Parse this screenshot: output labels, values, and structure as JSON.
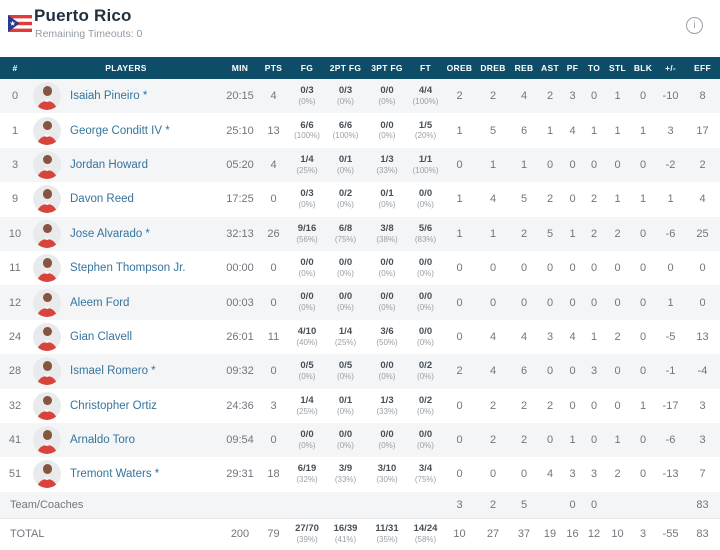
{
  "header": {
    "team_name": "Puerto Rico",
    "subtitle": "Remaining Timeouts: 0",
    "flag": "puerto-rico-flag",
    "info_icon_glyph": "i"
  },
  "colors": {
    "table_header_bg": "#0e4d68",
    "player_name_link": "#36749d",
    "jersey_red": "#d8433c",
    "flag_red": "#e03c3c",
    "flag_blue": "#243e8f",
    "alt_row_bg": "#f4f5f6"
  },
  "table": {
    "columns": [
      "#",
      "PLAYERS",
      "MIN",
      "PTS",
      "FG",
      "2PT FG",
      "3PT FG",
      "FT",
      "OREB",
      "DREB",
      "REB",
      "AST",
      "PF",
      "TO",
      "STL",
      "BLK",
      "+/-",
      "EFF"
    ],
    "column_keys": [
      "num",
      "players",
      "min",
      "pts",
      "fg",
      "2pt",
      "3pt",
      "ft",
      "oreb",
      "dreb",
      "reb",
      "ast",
      "pf",
      "to",
      "stl",
      "blk",
      "pm",
      "eff"
    ],
    "players": [
      {
        "num": "0",
        "name": "Isaiah Pineiro *",
        "min": "20:15",
        "pts": "4",
        "fg": "0/3",
        "fg_pct": "(0%)",
        "fg2": "0/3",
        "fg2_pct": "(0%)",
        "fg3": "0/0",
        "fg3_pct": "(0%)",
        "ft": "4/4",
        "ft_pct": "(100%)",
        "oreb": "2",
        "dreb": "2",
        "reb": "4",
        "ast": "2",
        "pf": "3",
        "to": "0",
        "stl": "1",
        "blk": "0",
        "pm": "-10",
        "eff": "8"
      },
      {
        "num": "1",
        "name": "George Conditt IV *",
        "min": "25:10",
        "pts": "13",
        "fg": "6/6",
        "fg_pct": "(100%)",
        "fg2": "6/6",
        "fg2_pct": "(100%)",
        "fg3": "0/0",
        "fg3_pct": "(0%)",
        "ft": "1/5",
        "ft_pct": "(20%)",
        "oreb": "1",
        "dreb": "5",
        "reb": "6",
        "ast": "1",
        "pf": "4",
        "to": "1",
        "stl": "1",
        "blk": "1",
        "pm": "3",
        "eff": "17"
      },
      {
        "num": "3",
        "name": "Jordan Howard",
        "min": "05:20",
        "pts": "4",
        "fg": "1/4",
        "fg_pct": "(25%)",
        "fg2": "0/1",
        "fg2_pct": "(0%)",
        "fg3": "1/3",
        "fg3_pct": "(33%)",
        "ft": "1/1",
        "ft_pct": "(100%)",
        "oreb": "0",
        "dreb": "1",
        "reb": "1",
        "ast": "0",
        "pf": "0",
        "to": "0",
        "stl": "0",
        "blk": "0",
        "pm": "-2",
        "eff": "2"
      },
      {
        "num": "9",
        "name": "Davon Reed",
        "min": "17:25",
        "pts": "0",
        "fg": "0/3",
        "fg_pct": "(0%)",
        "fg2": "0/2",
        "fg2_pct": "(0%)",
        "fg3": "0/1",
        "fg3_pct": "(0%)",
        "ft": "0/0",
        "ft_pct": "(0%)",
        "oreb": "1",
        "dreb": "4",
        "reb": "5",
        "ast": "2",
        "pf": "0",
        "to": "2",
        "stl": "1",
        "blk": "1",
        "pm": "1",
        "eff": "4"
      },
      {
        "num": "10",
        "name": "Jose Alvarado *",
        "min": "32:13",
        "pts": "26",
        "fg": "9/16",
        "fg_pct": "(56%)",
        "fg2": "6/8",
        "fg2_pct": "(75%)",
        "fg3": "3/8",
        "fg3_pct": "(38%)",
        "ft": "5/6",
        "ft_pct": "(83%)",
        "oreb": "1",
        "dreb": "1",
        "reb": "2",
        "ast": "5",
        "pf": "1",
        "to": "2",
        "stl": "2",
        "blk": "0",
        "pm": "-6",
        "eff": "25"
      },
      {
        "num": "11",
        "name": "Stephen Thompson Jr.",
        "min": "00:00",
        "pts": "0",
        "fg": "0/0",
        "fg_pct": "(0%)",
        "fg2": "0/0",
        "fg2_pct": "(0%)",
        "fg3": "0/0",
        "fg3_pct": "(0%)",
        "ft": "0/0",
        "ft_pct": "(0%)",
        "oreb": "0",
        "dreb": "0",
        "reb": "0",
        "ast": "0",
        "pf": "0",
        "to": "0",
        "stl": "0",
        "blk": "0",
        "pm": "0",
        "eff": "0"
      },
      {
        "num": "12",
        "name": "Aleem Ford",
        "min": "00:03",
        "pts": "0",
        "fg": "0/0",
        "fg_pct": "(0%)",
        "fg2": "0/0",
        "fg2_pct": "(0%)",
        "fg3": "0/0",
        "fg3_pct": "(0%)",
        "ft": "0/0",
        "ft_pct": "(0%)",
        "oreb": "0",
        "dreb": "0",
        "reb": "0",
        "ast": "0",
        "pf": "0",
        "to": "0",
        "stl": "0",
        "blk": "0",
        "pm": "1",
        "eff": "0"
      },
      {
        "num": "24",
        "name": "Gian Clavell",
        "min": "26:01",
        "pts": "11",
        "fg": "4/10",
        "fg_pct": "(40%)",
        "fg2": "1/4",
        "fg2_pct": "(25%)",
        "fg3": "3/6",
        "fg3_pct": "(50%)",
        "ft": "0/0",
        "ft_pct": "(0%)",
        "oreb": "0",
        "dreb": "4",
        "reb": "4",
        "ast": "3",
        "pf": "4",
        "to": "1",
        "stl": "2",
        "blk": "0",
        "pm": "-5",
        "eff": "13"
      },
      {
        "num": "28",
        "name": "Ismael Romero *",
        "min": "09:32",
        "pts": "0",
        "fg": "0/5",
        "fg_pct": "(0%)",
        "fg2": "0/5",
        "fg2_pct": "(0%)",
        "fg3": "0/0",
        "fg3_pct": "(0%)",
        "ft": "0/2",
        "ft_pct": "(0%)",
        "oreb": "2",
        "dreb": "4",
        "reb": "6",
        "ast": "0",
        "pf": "0",
        "to": "3",
        "stl": "0",
        "blk": "0",
        "pm": "-1",
        "eff": "-4"
      },
      {
        "num": "32",
        "name": "Christopher Ortiz",
        "min": "24:36",
        "pts": "3",
        "fg": "1/4",
        "fg_pct": "(25%)",
        "fg2": "0/1",
        "fg2_pct": "(0%)",
        "fg3": "1/3",
        "fg3_pct": "(33%)",
        "ft": "0/2",
        "ft_pct": "(0%)",
        "oreb": "0",
        "dreb": "2",
        "reb": "2",
        "ast": "2",
        "pf": "0",
        "to": "0",
        "stl": "0",
        "blk": "1",
        "pm": "-17",
        "eff": "3"
      },
      {
        "num": "41",
        "name": "Arnaldo Toro",
        "min": "09:54",
        "pts": "0",
        "fg": "0/0",
        "fg_pct": "(0%)",
        "fg2": "0/0",
        "fg2_pct": "(0%)",
        "fg3": "0/0",
        "fg3_pct": "(0%)",
        "ft": "0/0",
        "ft_pct": "(0%)",
        "oreb": "0",
        "dreb": "2",
        "reb": "2",
        "ast": "0",
        "pf": "1",
        "to": "0",
        "stl": "1",
        "blk": "0",
        "pm": "-6",
        "eff": "3"
      },
      {
        "num": "51",
        "name": "Tremont Waters *",
        "min": "29:31",
        "pts": "18",
        "fg": "6/19",
        "fg_pct": "(32%)",
        "fg2": "3/9",
        "fg2_pct": "(33%)",
        "fg3": "3/10",
        "fg3_pct": "(30%)",
        "ft": "3/4",
        "ft_pct": "(75%)",
        "oreb": "0",
        "dreb": "0",
        "reb": "0",
        "ast": "4",
        "pf": "3",
        "to": "3",
        "stl": "2",
        "blk": "0",
        "pm": "-13",
        "eff": "7"
      }
    ],
    "team_row": {
      "label": "Team/Coaches",
      "oreb": "3",
      "dreb": "2",
      "reb": "5",
      "ast": "",
      "pf": "0",
      "to": "0",
      "stl": "",
      "blk": "",
      "pm": "",
      "eff": "83"
    },
    "total_row": {
      "label": "TOTAL",
      "min": "200",
      "pts": "79",
      "fg": "27/70",
      "fg_pct": "(39%)",
      "fg2": "16/39",
      "fg2_pct": "(41%)",
      "fg3": "11/31",
      "fg3_pct": "(35%)",
      "ft": "14/24",
      "ft_pct": "(58%)",
      "oreb": "10",
      "dreb": "27",
      "reb": "37",
      "ast": "19",
      "pf": "16",
      "to": "12",
      "stl": "10",
      "blk": "3",
      "pm": "-55",
      "eff": "83"
    }
  }
}
